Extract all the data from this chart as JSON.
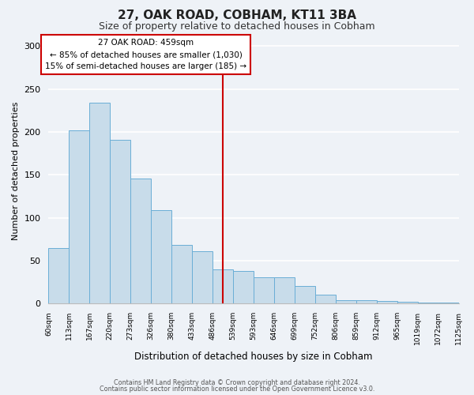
{
  "title": "27, OAK ROAD, COBHAM, KT11 3BA",
  "subtitle": "Size of property relative to detached houses in Cobham",
  "xlabel": "Distribution of detached houses by size in Cobham",
  "ylabel": "Number of detached properties",
  "bar_labels": [
    "60sqm",
    "113sqm",
    "167sqm",
    "220sqm",
    "273sqm",
    "326sqm",
    "380sqm",
    "433sqm",
    "486sqm",
    "539sqm",
    "593sqm",
    "646sqm",
    "699sqm",
    "752sqm",
    "806sqm",
    "859sqm",
    "912sqm",
    "965sqm",
    "1019sqm",
    "1072sqm",
    "1125sqm"
  ],
  "bar_heights": [
    65,
    202,
    234,
    191,
    146,
    109,
    68,
    61,
    40,
    38,
    31,
    31,
    21,
    10,
    4,
    4,
    3,
    2,
    1,
    1
  ],
  "bar_color": "#c8dcea",
  "bar_edge_color": "#6aaed6",
  "vline_x_bar_index": 8,
  "vline_color": "#cc0000",
  "ylim": [
    0,
    310
  ],
  "yticks": [
    0,
    50,
    100,
    150,
    200,
    250,
    300
  ],
  "annotation_title": "27 OAK ROAD: 459sqm",
  "annotation_line1": "← 85% of detached houses are smaller (1,030)",
  "annotation_line2": "15% of semi-detached houses are larger (185) →",
  "annotation_box_facecolor": "#ffffff",
  "annotation_box_edgecolor": "#cc0000",
  "footer_line1": "Contains HM Land Registry data © Crown copyright and database right 2024.",
  "footer_line2": "Contains public sector information licensed under the Open Government Licence v3.0.",
  "background_color": "#eef2f7",
  "plot_bg_color": "#eef2f7",
  "grid_color": "#ffffff",
  "title_fontsize": 11,
  "subtitle_fontsize": 9,
  "ylabel_fontsize": 8,
  "xlabel_fontsize": 8.5,
  "ytick_fontsize": 8,
  "xtick_fontsize": 6.5
}
